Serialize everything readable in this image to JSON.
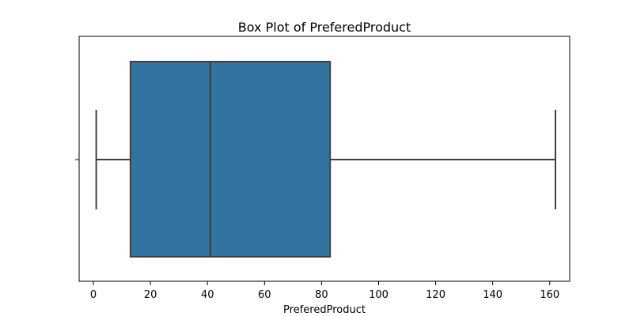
{
  "chart_data": {
    "type": "box",
    "title": "Box Plot of PreferedProduct",
    "xlabel": "PreferedProduct",
    "ylabel": "",
    "xlim": [
      -5,
      167
    ],
    "x_ticks": [
      0,
      20,
      40,
      60,
      80,
      100,
      120,
      140,
      160
    ],
    "grid": false,
    "legend": "none",
    "box": {
      "whisker_low": 1,
      "q1": 13,
      "median": 41,
      "q3": 83,
      "whisker_high": 162
    },
    "colors": {
      "box_fill": "#3274a1",
      "line": "#3f3f3f"
    }
  }
}
